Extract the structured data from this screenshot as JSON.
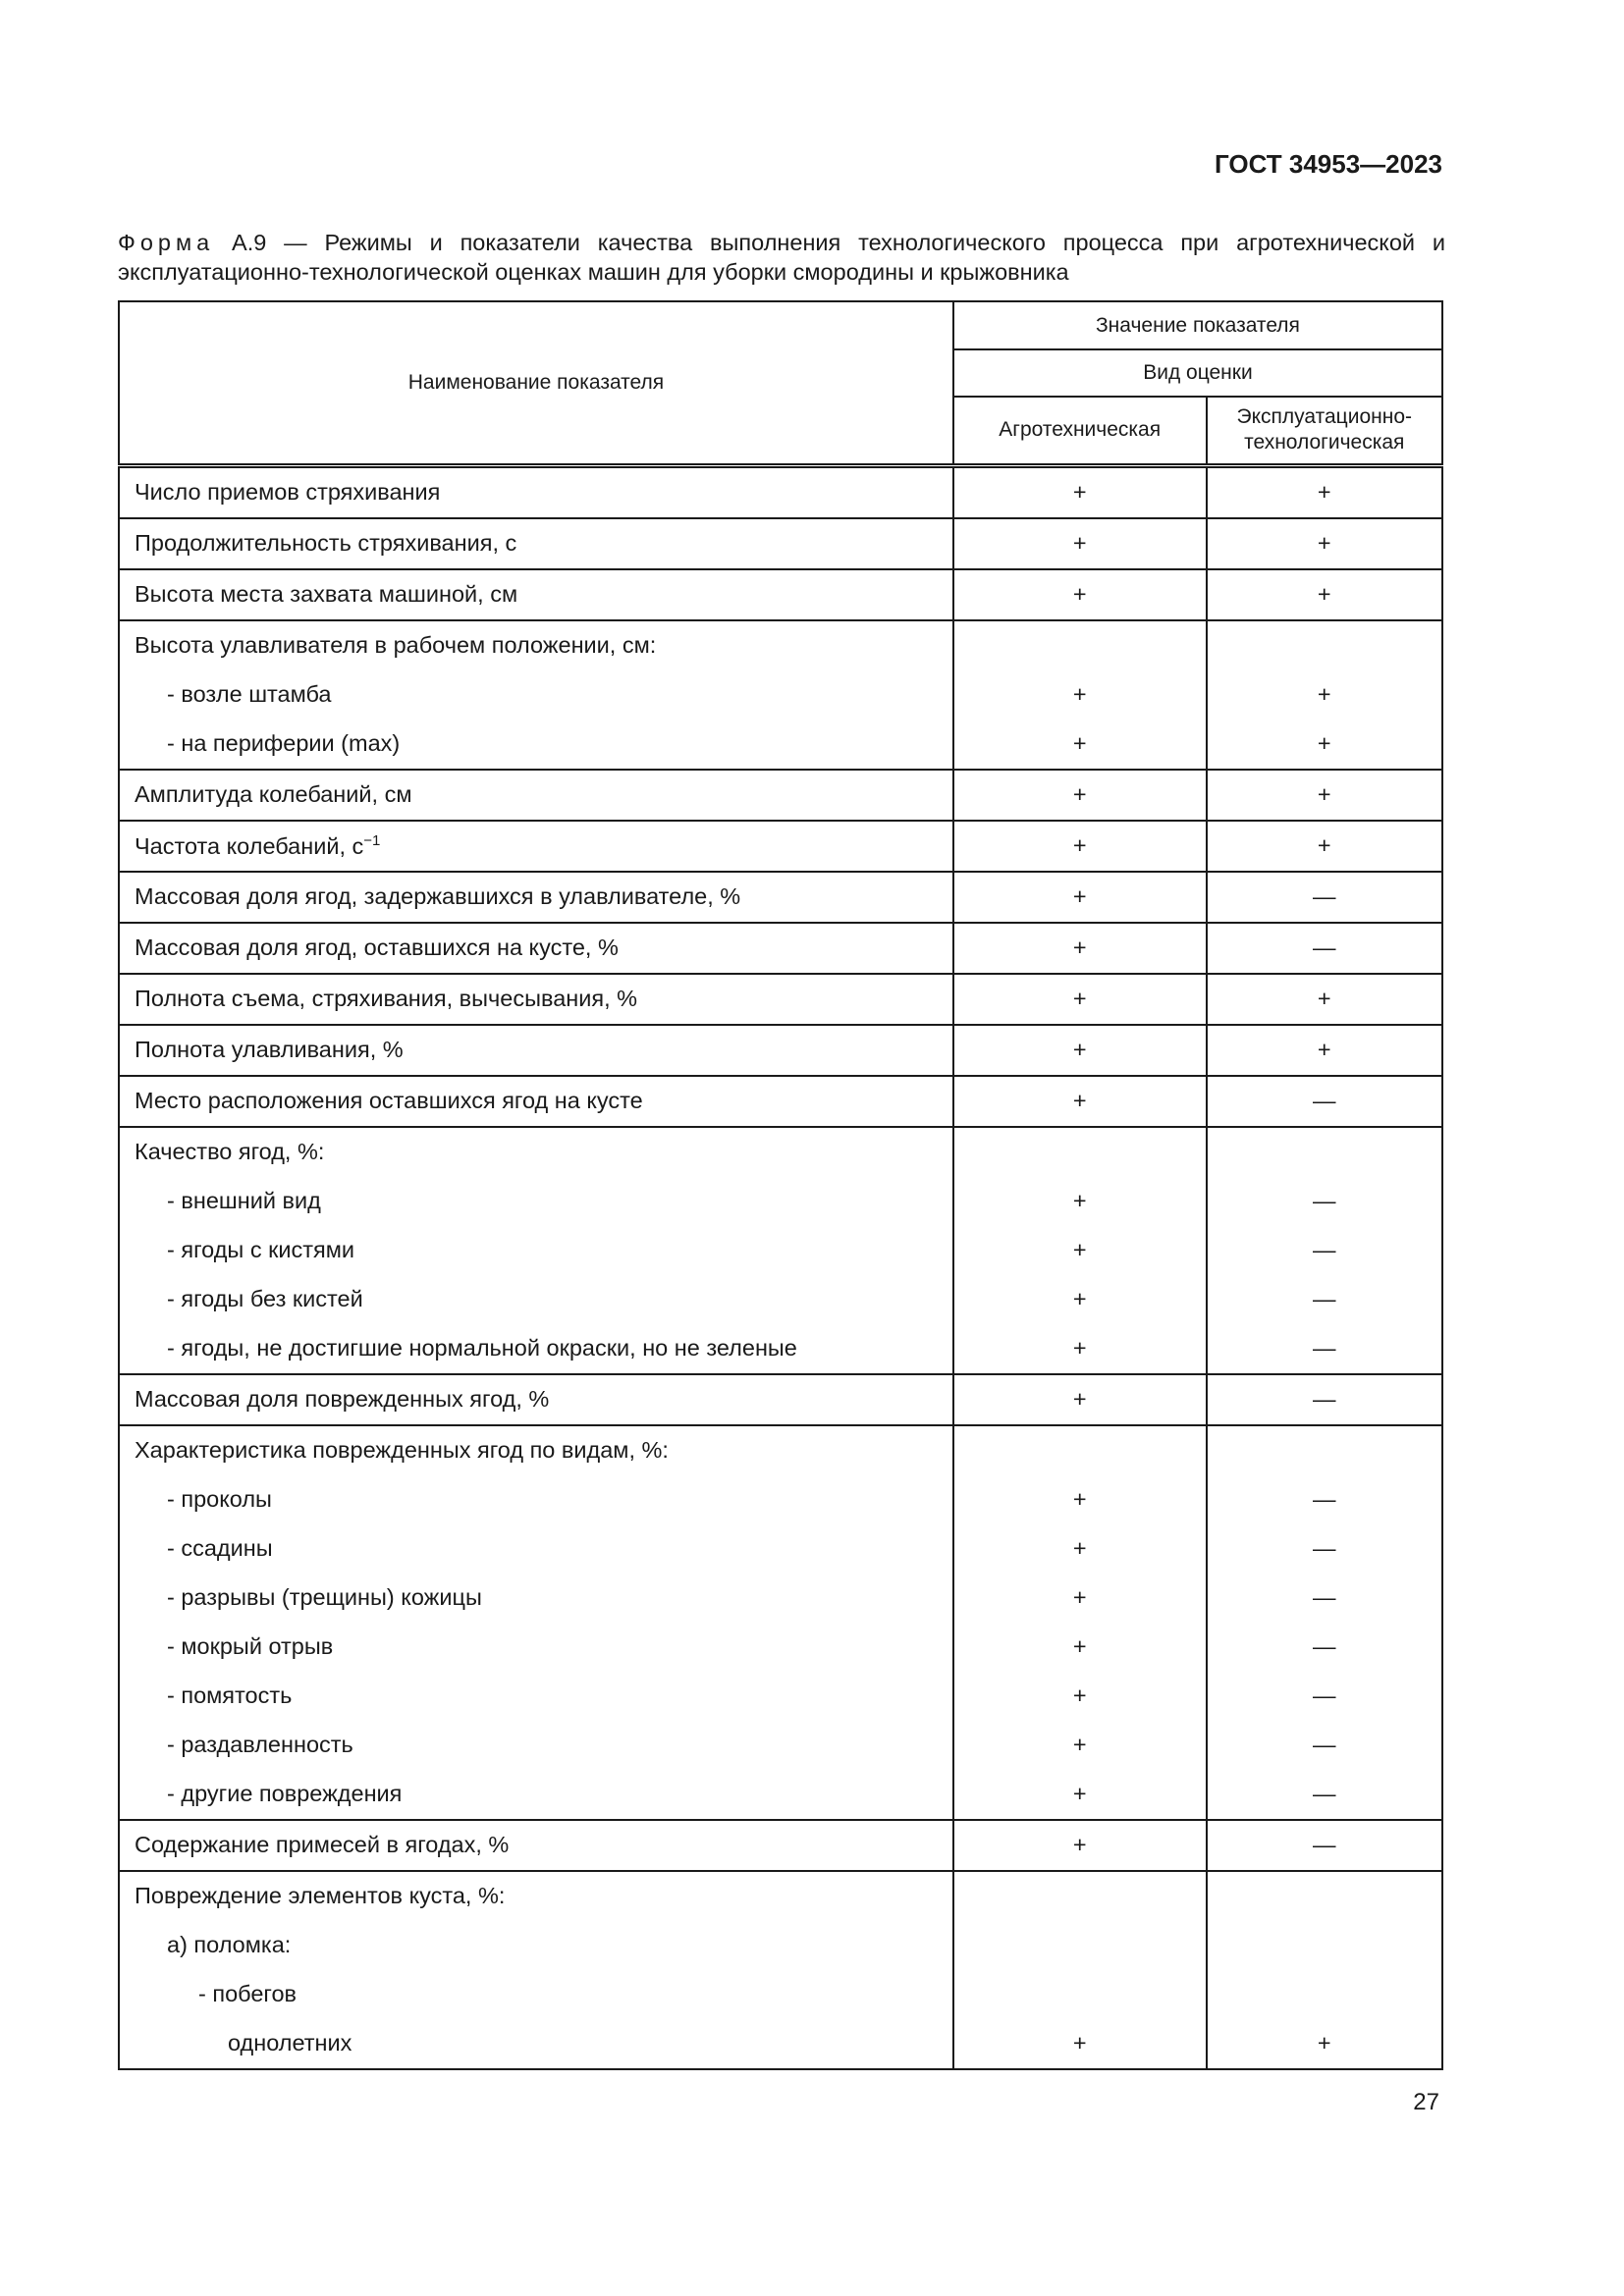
{
  "header": {
    "standard": "ГОСТ 34953—2023"
  },
  "caption": {
    "prefix": "Форма",
    "text": " А.9 — Режимы и показатели качества выполнения технологического процесса при агротехнической и эксплуатационно-технологической оценках машин для уборки смородины и крыжовника"
  },
  "table": {
    "col_name": "Наименование показателя",
    "col_value": "Значение показателя",
    "col_kind": "Вид оценки",
    "col_agro": "Агротехническая",
    "col_expl": "Эксплуатационно-технологическая",
    "groups": [
      [
        {
          "text": "Число приемов стряхивания",
          "agro": "+",
          "expl": "+"
        }
      ],
      [
        {
          "text": "Продолжительность стряхивания, с",
          "agro": "+",
          "expl": "+"
        }
      ],
      [
        {
          "text": "Высота места захвата машиной, см",
          "agro": "+",
          "expl": "+"
        }
      ],
      [
        {
          "text": "Высота улавливателя в рабочем положении, см:"
        },
        {
          "text": "-  возле штамба",
          "indent": 1,
          "agro": "+",
          "expl": "+"
        },
        {
          "text": "-  на периферии (max)",
          "indent": 1,
          "agro": "+",
          "expl": "+"
        }
      ],
      [
        {
          "text": "Амплитуда колебаний, см",
          "agro": "+",
          "expl": "+"
        }
      ],
      [
        {
          "text": "Частота колебаний, с",
          "sup": "−1",
          "agro": "+",
          "expl": "+"
        }
      ],
      [
        {
          "text": "Массовая доля ягод, задержавшихся в улавливателе, %",
          "agro": "+",
          "expl": "—"
        }
      ],
      [
        {
          "text": "Массовая доля ягод, оставшихся на кусте, %",
          "agro": "+",
          "expl": "—"
        }
      ],
      [
        {
          "text": "Полнота съема, стряхивания, вычесывания, %",
          "agro": "+",
          "expl": "+"
        }
      ],
      [
        {
          "text": "Полнота улавливания, %",
          "agro": "+",
          "expl": "+"
        }
      ],
      [
        {
          "text": "Место расположения оставшихся ягод на кусте",
          "agro": "+",
          "expl": "—"
        }
      ],
      [
        {
          "text": "Качество ягод, %:"
        },
        {
          "text": "-  внешний вид",
          "indent": 1,
          "agro": "+",
          "expl": "—"
        },
        {
          "text": "-  ягоды с кистями",
          "indent": 1,
          "agro": "+",
          "expl": "—"
        },
        {
          "text": "-  ягоды без кистей",
          "indent": 1,
          "agro": "+",
          "expl": "—"
        },
        {
          "text": "-  ягоды, не достигшие нормальной окраски, но не зеленые",
          "indent": 1,
          "agro": "+",
          "expl": "—"
        }
      ],
      [
        {
          "text": "Массовая доля поврежденных ягод, %",
          "agro": "+",
          "expl": "—"
        }
      ],
      [
        {
          "text": "Характеристика поврежденных ягод по видам, %:"
        },
        {
          "text": "-  проколы",
          "indent": 1,
          "agro": "+",
          "expl": "—"
        },
        {
          "text": "-  ссадины",
          "indent": 1,
          "agro": "+",
          "expl": "—"
        },
        {
          "text": "-  разрывы (трещины) кожицы",
          "indent": 1,
          "agro": "+",
          "expl": "—"
        },
        {
          "text": "-  мокрый отрыв",
          "indent": 1,
          "agro": "+",
          "expl": "—"
        },
        {
          "text": "-  помятость",
          "indent": 1,
          "agro": "+",
          "expl": "—"
        },
        {
          "text": "-  раздавленность",
          "indent": 1,
          "agro": "+",
          "expl": "—"
        },
        {
          "text": "-  другие повреждения",
          "indent": 1,
          "agro": "+",
          "expl": "—"
        }
      ],
      [
        {
          "text": "Содержание примесей в ягодах, %",
          "agro": "+",
          "expl": "—"
        }
      ],
      [
        {
          "text": "Повреждение элементов куста, %:"
        },
        {
          "text": "а) поломка:",
          "indent": 1
        },
        {
          "text": "-  побегов",
          "indent": 2
        },
        {
          "text": "однолетних",
          "indent": 3,
          "agro": "+",
          "expl": "+"
        }
      ]
    ]
  },
  "footer": {
    "page": "27"
  }
}
